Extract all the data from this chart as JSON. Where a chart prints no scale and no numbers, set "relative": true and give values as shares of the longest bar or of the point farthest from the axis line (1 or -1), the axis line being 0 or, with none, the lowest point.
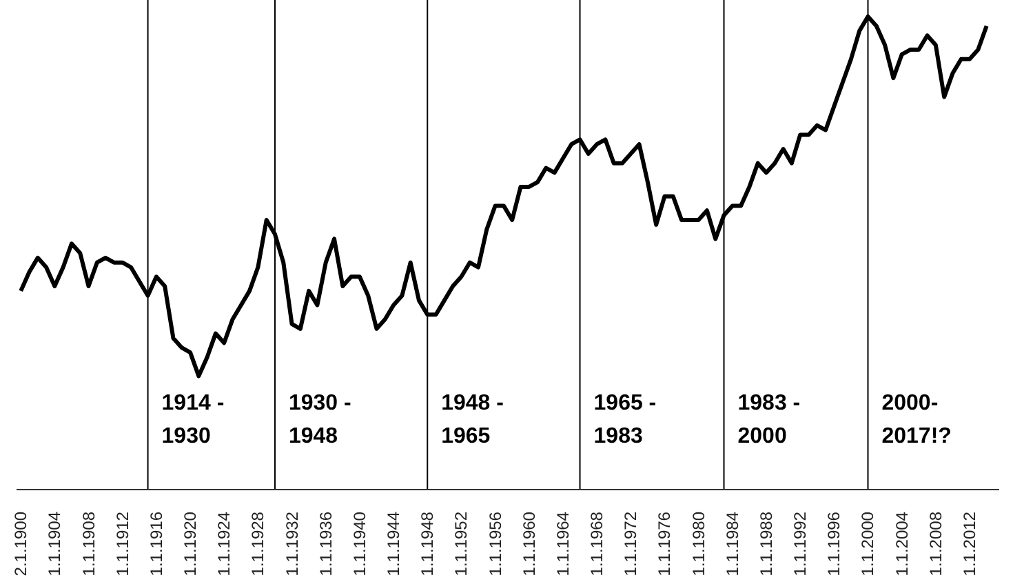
{
  "chart_data": {
    "type": "line",
    "relative": true,
    "x": [
      "1900-01-02",
      "1901-01-01",
      "1902-01-01",
      "1903-01-01",
      "1904-01-01",
      "1905-01-01",
      "1906-01-01",
      "1907-01-01",
      "1908-01-01",
      "1909-01-01",
      "1910-01-01",
      "1911-01-01",
      "1912-01-01",
      "1913-01-01",
      "1914-01-01",
      "1915-01-01",
      "1916-01-01",
      "1917-01-01",
      "1918-01-01",
      "1919-01-01",
      "1920-01-01",
      "1921-01-01",
      "1922-01-01",
      "1923-01-01",
      "1924-01-01",
      "1925-01-01",
      "1926-01-01",
      "1927-01-01",
      "1928-01-01",
      "1929-01-01",
      "1930-01-01",
      "1931-01-01",
      "1932-01-01",
      "1933-01-01",
      "1934-01-01",
      "1935-01-01",
      "1936-01-01",
      "1937-01-01",
      "1938-01-01",
      "1939-01-01",
      "1940-01-01",
      "1941-01-01",
      "1942-01-01",
      "1943-01-01",
      "1944-01-01",
      "1945-01-01",
      "1946-01-01",
      "1947-01-01",
      "1948-01-01",
      "1949-01-01",
      "1950-01-01",
      "1951-01-01",
      "1952-01-01",
      "1953-01-01",
      "1954-01-01",
      "1955-01-01",
      "1956-01-01",
      "1957-01-01",
      "1958-01-01",
      "1959-01-01",
      "1960-01-01",
      "1961-01-01",
      "1962-01-01",
      "1963-01-01",
      "1964-01-01",
      "1965-01-01",
      "1966-01-01",
      "1967-01-01",
      "1968-01-01",
      "1969-01-01",
      "1970-01-01",
      "1971-01-01",
      "1972-01-01",
      "1973-01-01",
      "1974-01-01",
      "1975-01-01",
      "1976-01-01",
      "1977-01-01",
      "1978-01-01",
      "1979-01-01",
      "1980-01-01",
      "1981-01-01",
      "1982-01-01",
      "1983-01-01",
      "1984-01-01",
      "1985-01-01",
      "1986-01-01",
      "1987-01-01",
      "1988-01-01",
      "1989-01-01",
      "1990-01-01",
      "1991-01-01",
      "1992-01-01",
      "1993-01-01",
      "1994-01-01",
      "1995-01-01",
      "1996-01-01",
      "1997-01-01",
      "1998-01-01",
      "1999-01-01",
      "2000-01-01",
      "2001-01-01",
      "2002-01-01",
      "2003-01-01",
      "2004-01-01",
      "2005-01-01",
      "2006-01-01",
      "2007-01-01",
      "2008-01-01",
      "2009-01-01",
      "2010-01-01",
      "2011-01-01",
      "2012-01-01",
      "2013-01-01",
      "2014-01-01"
    ],
    "series": [
      {
        "color": "#000000",
        "values": [
          0.42,
          0.46,
          0.49,
          0.47,
          0.43,
          0.47,
          0.52,
          0.5,
          0.43,
          0.48,
          0.49,
          0.48,
          0.48,
          0.47,
          0.44,
          0.41,
          0.45,
          0.43,
          0.32,
          0.3,
          0.29,
          0.24,
          0.28,
          0.33,
          0.31,
          0.36,
          0.39,
          0.42,
          0.47,
          0.57,
          0.54,
          0.48,
          0.35,
          0.34,
          0.42,
          0.39,
          0.48,
          0.53,
          0.43,
          0.45,
          0.45,
          0.41,
          0.34,
          0.36,
          0.39,
          0.41,
          0.48,
          0.4,
          0.37,
          0.37,
          0.4,
          0.43,
          0.45,
          0.48,
          0.47,
          0.55,
          0.6,
          0.6,
          0.57,
          0.64,
          0.64,
          0.65,
          0.68,
          0.67,
          0.7,
          0.73,
          0.74,
          0.71,
          0.73,
          0.74,
          0.69,
          0.69,
          0.71,
          0.73,
          0.65,
          0.56,
          0.62,
          0.62,
          0.57,
          0.57,
          0.57,
          0.59,
          0.53,
          0.58,
          0.6,
          0.6,
          0.64,
          0.69,
          0.67,
          0.69,
          0.72,
          0.69,
          0.75,
          0.75,
          0.77,
          0.76,
          0.81,
          0.86,
          0.91,
          0.97,
          1,
          0.98,
          0.94,
          0.87,
          0.92,
          0.93,
          0.93,
          0.96,
          0.94,
          0.83,
          0.88,
          0.91,
          0.91,
          0.93,
          0.98
        ]
      }
    ],
    "xlim": [
      "1899-07-01",
      "2015-07-01"
    ],
    "xticks": [
      {
        "value": "1900-01-02",
        "label": "2.1.1900"
      },
      {
        "value": "1904-01-01",
        "label": "1.1.1904"
      },
      {
        "value": "1908-01-01",
        "label": "1.1.1908"
      },
      {
        "value": "1912-01-01",
        "label": "1.1.1912"
      },
      {
        "value": "1916-01-01",
        "label": "1.1.1916"
      },
      {
        "value": "1920-01-01",
        "label": "1.1.1920"
      },
      {
        "value": "1924-01-01",
        "label": "1.1.1924"
      },
      {
        "value": "1928-01-01",
        "label": "1.1.1928"
      },
      {
        "value": "1932-01-01",
        "label": "1.1.1932"
      },
      {
        "value": "1936-01-01",
        "label": "1.1.1936"
      },
      {
        "value": "1940-01-01",
        "label": "1.1.1940"
      },
      {
        "value": "1944-01-01",
        "label": "1.1.1944"
      },
      {
        "value": "1948-01-01",
        "label": "1.1.1948"
      },
      {
        "value": "1952-01-01",
        "label": "1.1.1952"
      },
      {
        "value": "1956-01-01",
        "label": "1.1.1956"
      },
      {
        "value": "1960-01-01",
        "label": "1.1.1960"
      },
      {
        "value": "1964-01-01",
        "label": "1.1.1964"
      },
      {
        "value": "1968-01-01",
        "label": "1.1.1968"
      },
      {
        "value": "1972-01-01",
        "label": "1.1.1972"
      },
      {
        "value": "1976-01-01",
        "label": "1.1.1976"
      },
      {
        "value": "1980-01-01",
        "label": "1.1.1980"
      },
      {
        "value": "1984-01-01",
        "label": "1.1.1984"
      },
      {
        "value": "1988-01-01",
        "label": "1.1.1988"
      },
      {
        "value": "1992-01-01",
        "label": "1.1.1992"
      },
      {
        "value": "1996-01-01",
        "label": "1.1.1996"
      },
      {
        "value": "2000-01-01",
        "label": "1.1.2000"
      },
      {
        "value": "2004-01-01",
        "label": "1.1.2004"
      },
      {
        "value": "2008-01-01",
        "label": "1.1.2008"
      },
      {
        "value": "2012-01-01",
        "label": "1.1.2012"
      }
    ],
    "ref_lines": [
      {
        "axis": "x",
        "value": "1915-01-01",
        "color": "#000000"
      },
      {
        "axis": "x",
        "value": "1930-01-01",
        "color": "#000000"
      },
      {
        "axis": "x",
        "value": "1948-01-01",
        "color": "#000000"
      },
      {
        "axis": "x",
        "value": "1966-01-01",
        "color": "#000000"
      },
      {
        "axis": "x",
        "value": "1983-01-01",
        "color": "#000000"
      },
      {
        "axis": "x",
        "value": "2000-01-01",
        "color": "#000000"
      }
    ],
    "annotations": [
      "1914 -\n1930",
      "1930 -\n1948",
      "1948 -\n1965",
      "1965 -\n1983",
      "1983 -\n2000",
      "2000-\n2017!?"
    ],
    "marker": "none",
    "line_style": "solid"
  }
}
